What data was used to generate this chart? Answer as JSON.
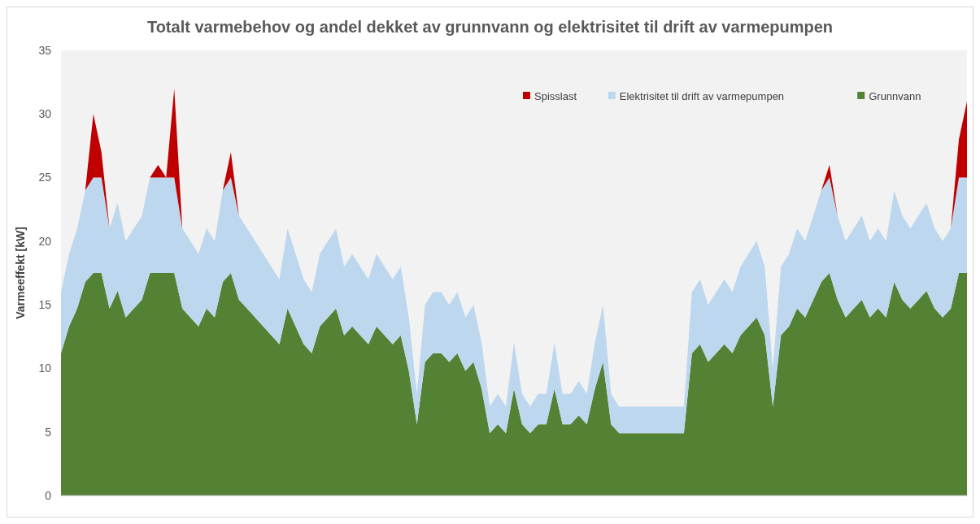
{
  "chart_data": {
    "type": "area",
    "stacked": true,
    "title": "Totalt varmebehov og andel dekket av grunnvann og elektrisitet til drift av varmepumpen",
    "ylabel": "Varmeeffekt [kW]",
    "ylim": [
      0,
      35
    ],
    "yticks": [
      0,
      5,
      10,
      15,
      20,
      25,
      30,
      35
    ],
    "grid": false,
    "legend": "top right",
    "tick_labels": "y",
    "categories": [
      null,
      null,
      null,
      null,
      null,
      null,
      null,
      null,
      null,
      null,
      null,
      null,
      null,
      null,
      null,
      null,
      null,
      null,
      null,
      null,
      null,
      null,
      null,
      null,
      null,
      null,
      null,
      null,
      null,
      null,
      null,
      null,
      null,
      null,
      null,
      null,
      null,
      null,
      null,
      null,
      null,
      null,
      null,
      null,
      null,
      null,
      null,
      null,
      null,
      null,
      null,
      null,
      null,
      null,
      null,
      null,
      null,
      null,
      null,
      null,
      null,
      null,
      null,
      null,
      null,
      null,
      null,
      null,
      null,
      null,
      null,
      null,
      null,
      null,
      null,
      null,
      null,
      null,
      null,
      null,
      null,
      null,
      null,
      null,
      null,
      null,
      null,
      null,
      null,
      null,
      null,
      null,
      null,
      null,
      null,
      null,
      null,
      null,
      null,
      null,
      null,
      null,
      null,
      null,
      null,
      null,
      null,
      null,
      null,
      null,
      null,
      null,
      null
    ],
    "series": [
      {
        "name": "Grunnvann",
        "color": "#548235",
        "values": [
          11.2,
          13.3,
          14.7,
          16.8,
          17.5,
          17.5,
          14.7,
          16.1,
          14,
          14.7,
          15.4,
          17.5,
          17.5,
          17.5,
          17.5,
          14.7,
          14,
          13.3,
          14.7,
          14,
          16.8,
          17.5,
          15.4,
          14.7,
          14,
          13.3,
          12.6,
          11.9,
          14.7,
          13.3,
          11.9,
          11.2,
          13.3,
          14,
          14.7,
          12.6,
          13.3,
          12.6,
          11.9,
          13.3,
          12.6,
          11.9,
          12.6,
          9.8,
          5.6,
          10.5,
          11.2,
          11.2,
          10.5,
          11.2,
          9.8,
          10.5,
          8.4,
          4.9,
          5.6,
          4.9,
          8.4,
          5.6,
          4.9,
          5.6,
          5.6,
          8.4,
          5.6,
          5.6,
          6.3,
          5.6,
          8.4,
          10.5,
          5.6,
          4.9,
          4.9,
          4.9,
          4.9,
          4.9,
          4.9,
          4.9,
          4.9,
          4.9,
          11.2,
          11.9,
          10.5,
          11.2,
          11.9,
          11.2,
          12.6,
          13.3,
          14,
          12.6,
          7,
          12.6,
          13.3,
          14.7,
          14,
          15.4,
          16.8,
          17.5,
          15.4,
          14,
          14.7,
          15.4,
          14,
          14.7,
          14,
          16.8,
          15.4,
          14.7,
          15.4,
          16.1,
          14.7,
          14,
          14.7,
          17.5,
          17.5
        ]
      },
      {
        "name": "Elektrisitet til drift av varmepumpen",
        "color": "#bdd7ee",
        "values": [
          4.8,
          5.7,
          6.3,
          7.2,
          7.5,
          7.5,
          6.3,
          6.9,
          6,
          6.3,
          6.6,
          7.5,
          7.5,
          7.5,
          7.5,
          6.3,
          6,
          5.7,
          6.3,
          6,
          7.2,
          7.5,
          6.6,
          6.3,
          6,
          5.7,
          5.4,
          5.1,
          6.3,
          5.7,
          5.1,
          4.8,
          5.7,
          6,
          6.3,
          5.4,
          5.7,
          5.4,
          5.1,
          5.7,
          5.4,
          5.1,
          5.4,
          4.2,
          2.4,
          4.5,
          4.8,
          4.8,
          4.5,
          4.8,
          4.2,
          4.5,
          3.6,
          2.1,
          2.4,
          2.1,
          3.6,
          2.4,
          2.1,
          2.4,
          2.4,
          3.6,
          2.4,
          2.4,
          2.7,
          2.4,
          3.6,
          4.5,
          2.4,
          2.1,
          2.1,
          2.1,
          2.1,
          2.1,
          2.1,
          2.1,
          2.1,
          2.1,
          4.8,
          5.1,
          4.5,
          4.8,
          5.1,
          4.8,
          5.4,
          5.7,
          6,
          5.4,
          3,
          5.4,
          5.7,
          6.3,
          6,
          6.6,
          7.2,
          7.5,
          6.6,
          6,
          6.3,
          6.6,
          6,
          6.3,
          6,
          7.2,
          6.6,
          6.3,
          6.6,
          6.9,
          6.3,
          6,
          6.3,
          7.5,
          7.5
        ]
      },
      {
        "name": "Spisslast",
        "color": "#c00000",
        "values": [
          0,
          0,
          0,
          0,
          5,
          2,
          0,
          0,
          0,
          0,
          0,
          0,
          1,
          0,
          7,
          0,
          0,
          0,
          0,
          0,
          0,
          2,
          0,
          0,
          0,
          0,
          0,
          0,
          0,
          0,
          0,
          0,
          0,
          0,
          0,
          0,
          0,
          0,
          0,
          0,
          0,
          0,
          0,
          0,
          0,
          0,
          0,
          0,
          0,
          0,
          0,
          0,
          0,
          0,
          0,
          0,
          0,
          0,
          0,
          0,
          0,
          0,
          0,
          0,
          0,
          0,
          0,
          0,
          0,
          0,
          0,
          0,
          0,
          0,
          0,
          0,
          0,
          0,
          0,
          0,
          0,
          0,
          0,
          0,
          0,
          0,
          0,
          0,
          0,
          0,
          0,
          0,
          0,
          0,
          0,
          1,
          0,
          0,
          0,
          0,
          0,
          0,
          0,
          0,
          0,
          0,
          0,
          0,
          0,
          0,
          0,
          3,
          6
        ]
      }
    ]
  }
}
